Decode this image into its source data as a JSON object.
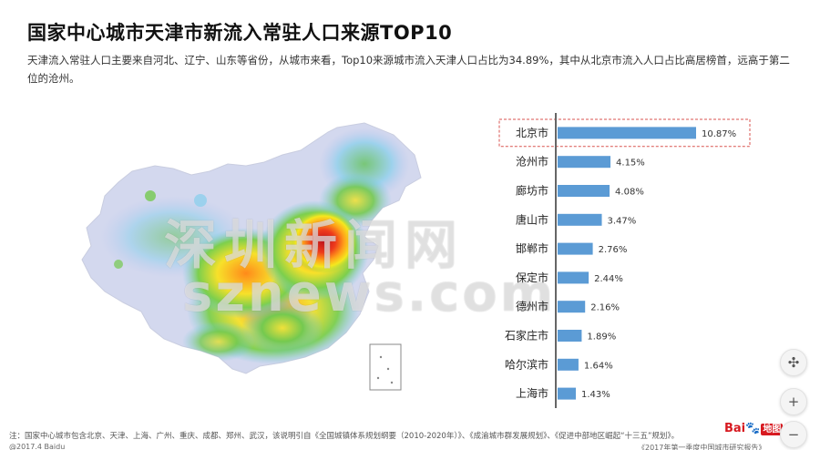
{
  "header": {
    "title": "国家中心城市天津市新流入常驻人口来源TOP10",
    "subtitle": "天津流入常驻人口主要来自河北、辽宁、山东等省份，从城市来看，Top10来源城市流入天津人口占比为34.89%，其中从北京市流入人口占比高居榜首，远高于第二位的沧州。"
  },
  "watermark": {
    "line1": "深圳新闻网",
    "line2": "sznews.com"
  },
  "chart_data": {
    "type": "bar",
    "orientation": "horizontal",
    "categories": [
      "北京市",
      "沧州市",
      "廊坊市",
      "唐山市",
      "邯郸市",
      "保定市",
      "德州市",
      "石家庄市",
      "哈尔滨市",
      "上海市"
    ],
    "values": [
      10.87,
      4.15,
      4.08,
      3.47,
      2.76,
      2.44,
      2.16,
      1.89,
      1.64,
      1.43
    ],
    "value_labels": [
      "10.87%",
      "4.15%",
      "4.08%",
      "3.47%",
      "2.76%",
      "2.44%",
      "2.16%",
      "1.89%",
      "1.64%",
      "1.43%"
    ],
    "unit": "%",
    "highlighted_category": "北京市",
    "bar_color": "#5b9bd5",
    "highlight_border_color": "#d9534f",
    "title": "",
    "xlabel": "",
    "ylabel": ""
  },
  "footer": {
    "note": "注：国家中心城市包含北京、天津、上海、广州、重庆、成都、郑州、武汉，该说明引自《全国城镇体系规划纲要（2010-2020年）》、《成渝城市群发展规划》、《促进中部地区崛起“十三五”规划》。",
    "copyright": "@2017.4 Baidu",
    "source": "《2017年第一季度中国城市研究报告》"
  },
  "brand": {
    "logo_text": "Bai",
    "logo_paw": "🐾",
    "logo_map": "地图"
  },
  "map_controls": {
    "compass_glyph": "✣",
    "zoom_in_glyph": "+",
    "zoom_out_glyph": "−"
  }
}
